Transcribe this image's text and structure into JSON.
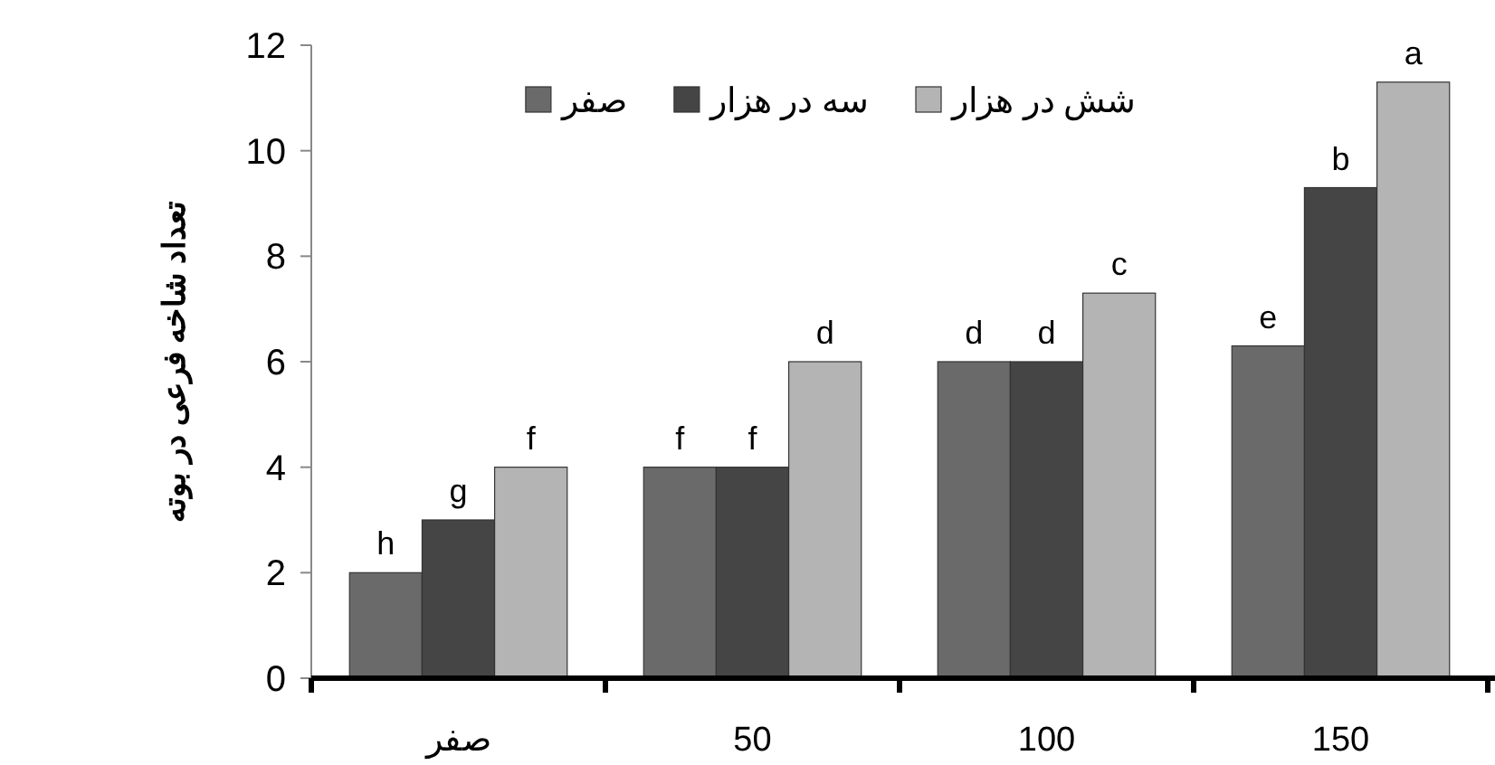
{
  "chart_data": {
    "type": "bar",
    "ylabel": "تعداد شاخه فرعی در بوته",
    "categories": [
      "صفر",
      "50",
      "100",
      "150"
    ],
    "ylim": [
      0,
      12
    ],
    "yticks": [
      0,
      2,
      4,
      6,
      8,
      10,
      12
    ],
    "grid": false,
    "legend": "top",
    "series": [
      {
        "name": "صفر",
        "color": "#6a6a6a",
        "values": [
          2,
          4,
          6,
          6.3
        ],
        "value_labels": [
          "h",
          "f",
          "d",
          "e"
        ]
      },
      {
        "name": "سه  در هزار",
        "color": "#454545",
        "values": [
          3,
          4,
          6,
          9.3
        ],
        "value_labels": [
          "g",
          "f",
          "d",
          "b"
        ]
      },
      {
        "name": "شش در هزار",
        "color": "#b4b4b4",
        "values": [
          4,
          6,
          7.3,
          11.3
        ],
        "value_labels": [
          "f",
          "d",
          "c",
          "a"
        ]
      }
    ]
  }
}
